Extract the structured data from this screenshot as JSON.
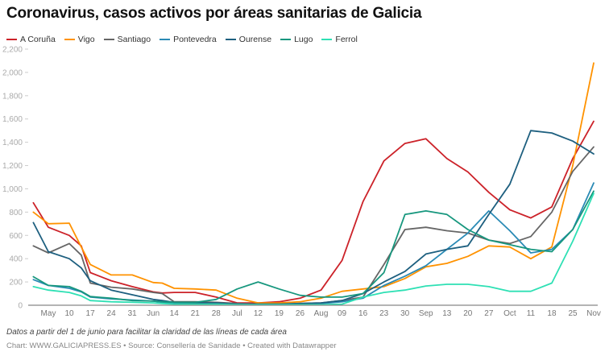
{
  "chart_data": {
    "type": "line",
    "title": "Coronavirus, casos activos por áreas sanitarias de Galicia",
    "xlabel": "",
    "ylabel": "",
    "ylim": [
      0,
      2200
    ],
    "yticks": [
      0,
      200,
      400,
      600,
      800,
      1000,
      1200,
      1400,
      1600,
      1800,
      2000,
      2200
    ],
    "ytick_labels": [
      "0",
      "200",
      "400",
      "600",
      "800",
      "1,000",
      "1,200",
      "1,400",
      "1,600",
      "1,800",
      "2,000",
      "2,200"
    ],
    "xticks": [
      "2020-05-03",
      "2020-05-10",
      "2020-05-17",
      "2020-05-24",
      "2020-05-31",
      "2020-06-07",
      "2020-06-14",
      "2020-06-21",
      "2020-06-28",
      "2020-07-05",
      "2020-07-12",
      "2020-07-19",
      "2020-07-26",
      "2020-08-02",
      "2020-08-09",
      "2020-08-16",
      "2020-08-23",
      "2020-08-30",
      "2020-09-06",
      "2020-09-13",
      "2020-09-20",
      "2020-09-27",
      "2020-10-04",
      "2020-10-11",
      "2020-10-18",
      "2020-10-25",
      "2020-11-01"
    ],
    "xtick_labels": [
      "May",
      "10",
      "17",
      "24",
      "31",
      "Jun",
      "14",
      "21",
      "28",
      "Jul",
      "12",
      "19",
      "26",
      "Aug",
      "09",
      "16",
      "23",
      "30",
      "Sep",
      "13",
      "20",
      "27",
      "Oct",
      "11",
      "18",
      "25",
      "Nov"
    ],
    "grid": "horizontal-dashed-ticks",
    "legend": "top-left",
    "x": [
      "2020-04-28",
      "2020-05-03",
      "2020-05-10",
      "2020-05-14",
      "2020-05-17",
      "2020-05-24",
      "2020-05-31",
      "2020-06-07",
      "2020-06-10",
      "2020-06-14",
      "2020-06-21",
      "2020-06-28",
      "2020-07-05",
      "2020-07-12",
      "2020-07-19",
      "2020-07-26",
      "2020-08-02",
      "2020-08-09",
      "2020-08-16",
      "2020-08-23",
      "2020-08-30",
      "2020-09-06",
      "2020-09-13",
      "2020-09-20",
      "2020-09-27",
      "2020-10-04",
      "2020-10-11",
      "2020-10-18",
      "2020-10-25",
      "2020-11-01"
    ],
    "series": [
      {
        "name": "A Coruña",
        "color": "#cc2229",
        "values": [
          880,
          670,
          600,
          510,
          280,
          210,
          160,
          115,
          105,
          110,
          110,
          70,
          20,
          20,
          30,
          60,
          130,
          385,
          890,
          1240,
          1390,
          1430,
          1260,
          1145,
          970,
          820,
          750,
          845,
          1260,
          1580
        ]
      },
      {
        "name": "Vigo",
        "color": "#ff9200",
        "values": [
          800,
          700,
          705,
          500,
          350,
          260,
          260,
          195,
          190,
          145,
          140,
          130,
          60,
          20,
          20,
          30,
          60,
          120,
          140,
          160,
          230,
          330,
          360,
          420,
          510,
          500,
          400,
          500,
          1200,
          2080
        ]
      },
      {
        "name": "Santiago",
        "color": "#666666",
        "values": [
          510,
          450,
          530,
          430,
          190,
          155,
          140,
          110,
          100,
          30,
          30,
          25,
          15,
          10,
          10,
          15,
          20,
          40,
          70,
          350,
          650,
          670,
          640,
          620,
          560,
          530,
          590,
          800,
          1150,
          1360
        ]
      },
      {
        "name": "Pontevedra",
        "color": "#2a8ab5",
        "values": [
          220,
          170,
          145,
          115,
          70,
          55,
          45,
          35,
          25,
          20,
          15,
          10,
          5,
          5,
          5,
          8,
          15,
          30,
          60,
          170,
          250,
          340,
          480,
          620,
          810,
          640,
          450,
          480,
          650,
          1050
        ]
      },
      {
        "name": "Ourense",
        "color": "#1d5f7f",
        "values": [
          710,
          460,
          400,
          320,
          210,
          130,
          90,
          50,
          40,
          25,
          20,
          20,
          10,
          10,
          10,
          15,
          20,
          40,
          100,
          200,
          290,
          440,
          480,
          510,
          780,
          1040,
          1500,
          1480,
          1410,
          1300
        ]
      },
      {
        "name": "Lugo",
        "color": "#17977e",
        "values": [
          245,
          170,
          160,
          120,
          75,
          60,
          40,
          35,
          30,
          25,
          25,
          50,
          140,
          200,
          140,
          85,
          70,
          70,
          100,
          280,
          780,
          810,
          780,
          650,
          560,
          520,
          480,
          460,
          650,
          980
        ]
      },
      {
        "name": "Ferrol",
        "color": "#2ee0b4",
        "values": [
          160,
          130,
          110,
          80,
          40,
          30,
          25,
          20,
          15,
          10,
          10,
          10,
          5,
          5,
          5,
          5,
          5,
          10,
          70,
          110,
          130,
          165,
          180,
          180,
          160,
          120,
          120,
          190,
          550,
          960
        ]
      }
    ]
  },
  "notes": {
    "description": "Datos a partir del 1 de junio para facilitar la claridad de las líneas de cada área",
    "credit": "Chart: WWW.GALICIAPRESS.ES • Source: Consellería de Sanidade • Created with Datawrapper"
  }
}
